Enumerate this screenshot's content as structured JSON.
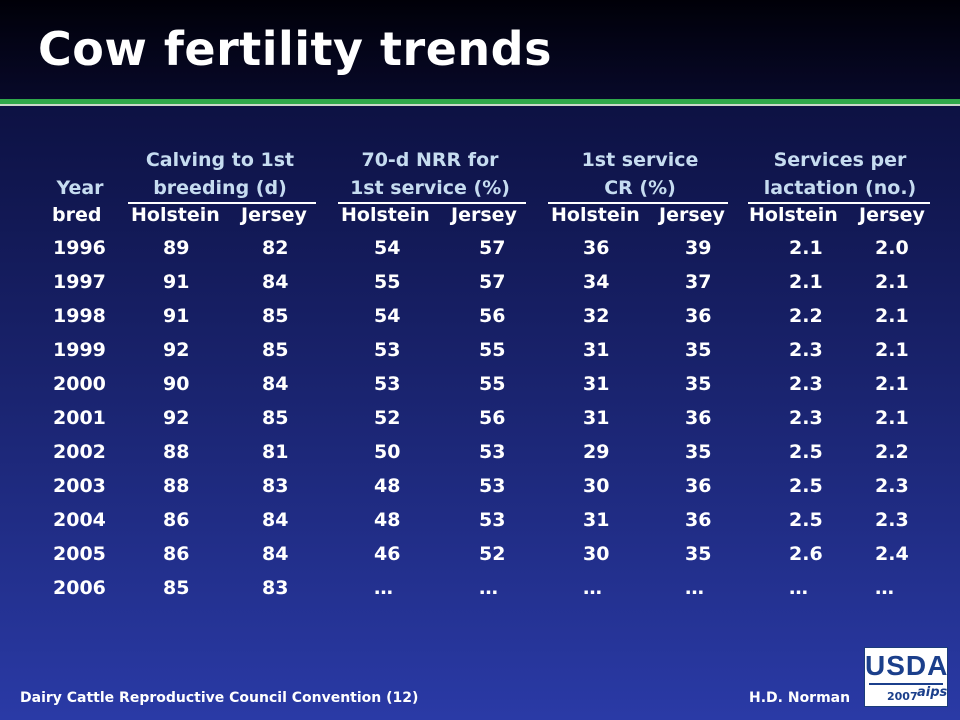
{
  "slide": {
    "title": "Cow fertility trends",
    "footer_left": "Dairy Cattle Reproductive Council Convention (12)",
    "footer_right": "H.D. Norman",
    "logo": {
      "text": "USDA",
      "year": "2007",
      "mark": "aips"
    }
  },
  "table": {
    "year_header": [
      "Year",
      "bred"
    ],
    "groups": [
      {
        "line1": "Calving to 1st",
        "line2": "breeding (d)"
      },
      {
        "line1": "70-d NRR for",
        "line2": "1st service (%)"
      },
      {
        "line1": "1st service",
        "line2": "CR (%)"
      },
      {
        "line1": "Services per",
        "line2": "lactation (no.)"
      }
    ],
    "breeds": [
      "Holstein",
      "Jersey"
    ],
    "rows": [
      [
        "1996",
        "89",
        "82",
        "54",
        "57",
        "36",
        "39",
        "2.1",
        "2.0"
      ],
      [
        "1997",
        "91",
        "84",
        "55",
        "57",
        "34",
        "37",
        "2.1",
        "2.1"
      ],
      [
        "1998",
        "91",
        "85",
        "54",
        "56",
        "32",
        "36",
        "2.2",
        "2.1"
      ],
      [
        "1999",
        "92",
        "85",
        "53",
        "55",
        "31",
        "35",
        "2.3",
        "2.1"
      ],
      [
        "2000",
        "90",
        "84",
        "53",
        "55",
        "31",
        "35",
        "2.3",
        "2.1"
      ],
      [
        "2001",
        "92",
        "85",
        "52",
        "56",
        "31",
        "36",
        "2.3",
        "2.1"
      ],
      [
        "2002",
        "88",
        "81",
        "50",
        "53",
        "29",
        "35",
        "2.5",
        "2.2"
      ],
      [
        "2003",
        "88",
        "83",
        "48",
        "53",
        "30",
        "36",
        "2.5",
        "2.3"
      ],
      [
        "2004",
        "86",
        "84",
        "48",
        "53",
        "31",
        "36",
        "2.5",
        "2.3"
      ],
      [
        "2005",
        "86",
        "84",
        "46",
        "52",
        "30",
        "35",
        "2.6",
        "2.4"
      ],
      [
        "2006",
        "85",
        "83",
        "…",
        "…",
        "…",
        "…",
        "…",
        "…"
      ]
    ]
  }
}
